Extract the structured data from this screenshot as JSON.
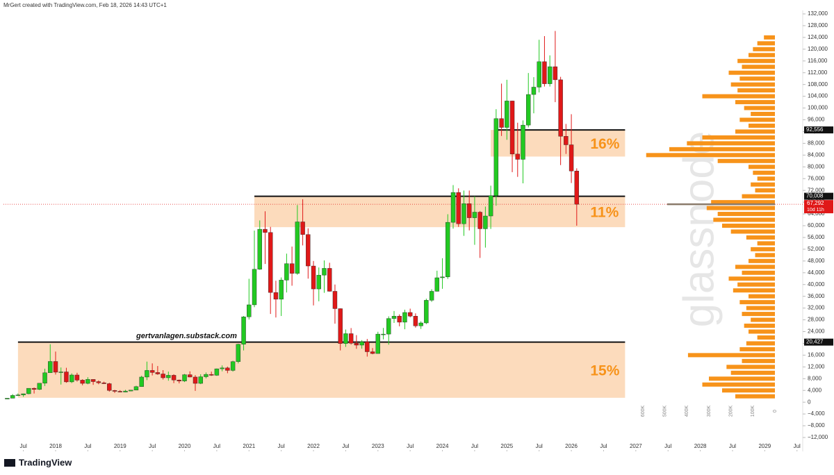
{
  "chart_data": {
    "type": "candlestick",
    "header": "MrGert created with TradingView.com, Feb 18, 2026 14:43 UTC+1",
    "footer": "TradingView",
    "annotation": "gertvanlagen.substack.com",
    "watermark": "glassnode",
    "x": [
      "2017-04",
      "2017-05",
      "2017-06",
      "2017-07",
      "2017-08",
      "2017-09",
      "2017-10",
      "2017-11",
      "2017-12",
      "2018-01",
      "2018-02",
      "2018-03",
      "2018-04",
      "2018-05",
      "2018-06",
      "2018-07",
      "2018-08",
      "2018-09",
      "2018-10",
      "2018-11",
      "2018-12",
      "2019-01",
      "2019-02",
      "2019-03",
      "2019-04",
      "2019-05",
      "2019-06",
      "2019-07",
      "2019-08",
      "2019-09",
      "2019-10",
      "2019-11",
      "2019-12",
      "2020-01",
      "2020-02",
      "2020-03",
      "2020-04",
      "2020-05",
      "2020-06",
      "2020-07",
      "2020-08",
      "2020-09",
      "2020-10",
      "2020-11",
      "2020-12",
      "2021-01",
      "2021-02",
      "2021-03",
      "2021-04",
      "2021-05",
      "2021-06",
      "2021-07",
      "2021-08",
      "2021-09",
      "2021-10",
      "2021-11",
      "2021-12",
      "2022-01",
      "2022-02",
      "2022-03",
      "2022-04",
      "2022-05",
      "2022-06",
      "2022-07",
      "2022-08",
      "2022-09",
      "2022-10",
      "2022-11",
      "2022-12",
      "2023-01",
      "2023-02",
      "2023-03",
      "2023-04",
      "2023-05",
      "2023-06",
      "2023-07",
      "2023-08",
      "2023-09",
      "2023-10",
      "2023-11",
      "2023-12",
      "2024-01",
      "2024-02",
      "2024-03",
      "2024-04",
      "2024-05",
      "2024-06",
      "2024-07",
      "2024-08",
      "2024-09",
      "2024-10",
      "2024-11",
      "2024-12",
      "2025-01",
      "2025-02",
      "2025-03",
      "2025-04",
      "2025-05",
      "2025-06",
      "2025-07",
      "2025-08",
      "2025-09",
      "2025-10",
      "2025-11",
      "2025-12",
      "2026-01",
      "2026-02"
    ],
    "ohlc": [
      [
        1080,
        1350,
        1060,
        1350
      ],
      [
        1350,
        2760,
        1350,
        2300
      ],
      [
        2300,
        2980,
        2100,
        2480
      ],
      [
        2480,
        2920,
        1830,
        2870
      ],
      [
        2870,
        4750,
        2700,
        4730
      ],
      [
        4730,
        5000,
        2950,
        4340
      ],
      [
        4340,
        6450,
        4100,
        6450
      ],
      [
        6450,
        11400,
        5500,
        10000
      ],
      [
        10000,
        19700,
        10000,
        13850
      ],
      [
        13850,
        17200,
        9400,
        10200
      ],
      [
        10200,
        11800,
        6000,
        10300
      ],
      [
        10300,
        11700,
        6600,
        6900
      ],
      [
        6900,
        9800,
        6500,
        9250
      ],
      [
        9250,
        10000,
        7000,
        7500
      ],
      [
        7500,
        7800,
        5750,
        6400
      ],
      [
        6400,
        8500,
        6100,
        7750
      ],
      [
        7750,
        7800,
        5900,
        7000
      ],
      [
        7000,
        7400,
        6100,
        6600
      ],
      [
        6600,
        7000,
        6200,
        6300
      ],
      [
        6300,
        6600,
        3600,
        4000
      ],
      [
        4000,
        4200,
        3150,
        3700
      ],
      [
        3700,
        4100,
        3350,
        3450
      ],
      [
        3450,
        4200,
        3400,
        3800
      ],
      [
        3800,
        4100,
        3700,
        4100
      ],
      [
        4100,
        5600,
        4100,
        5300
      ],
      [
        5300,
        9000,
        5300,
        8550
      ],
      [
        8550,
        13800,
        7500,
        10800
      ],
      [
        10800,
        13200,
        9100,
        10100
      ],
      [
        10100,
        12300,
        9300,
        9600
      ],
      [
        9600,
        10900,
        7700,
        8300
      ],
      [
        8300,
        10400,
        7300,
        9150
      ],
      [
        9150,
        9500,
        6500,
        7550
      ],
      [
        7550,
        7700,
        6400,
        7200
      ],
      [
        7200,
        9600,
        6850,
        9350
      ],
      [
        9350,
        10500,
        8450,
        8550
      ],
      [
        8550,
        9200,
        3850,
        6400
      ],
      [
        6400,
        9500,
        6150,
        8650
      ],
      [
        8650,
        10100,
        8100,
        9450
      ],
      [
        9450,
        10400,
        8950,
        9150
      ],
      [
        9150,
        11450,
        8950,
        11350
      ],
      [
        11350,
        12500,
        10500,
        11650
      ],
      [
        11650,
        12100,
        9850,
        10800
      ],
      [
        10800,
        14100,
        10400,
        13800
      ],
      [
        13800,
        19900,
        13200,
        19700
      ],
      [
        19700,
        29300,
        17600,
        29000
      ],
      [
        29000,
        41950,
        28100,
        33100
      ],
      [
        33100,
        58350,
        32300,
        45200
      ],
      [
        45200,
        61800,
        45000,
        58800
      ],
      [
        58800,
        64900,
        47000,
        57700
      ],
      [
        57700,
        59600,
        30000,
        37300
      ],
      [
        37300,
        41300,
        28800,
        35000
      ],
      [
        35000,
        42400,
        29300,
        41500
      ],
      [
        41500,
        50500,
        37300,
        47100
      ],
      [
        47100,
        52900,
        39600,
        43800
      ],
      [
        43800,
        67000,
        43300,
        61300
      ],
      [
        61300,
        69000,
        53300,
        57000
      ],
      [
        57000,
        59100,
        42000,
        46300
      ],
      [
        46300,
        48000,
        32900,
        38500
      ],
      [
        38500,
        45800,
        34300,
        43200
      ],
      [
        43200,
        48200,
        37200,
        45500
      ],
      [
        45500,
        47400,
        37600,
        37700
      ],
      [
        37700,
        40000,
        26700,
        31800
      ],
      [
        31800,
        31900,
        17600,
        19950
      ],
      [
        19950,
        24700,
        18800,
        23300
      ],
      [
        23300,
        25200,
        19600,
        20050
      ],
      [
        20050,
        22800,
        18150,
        19400
      ],
      [
        19400,
        21100,
        18200,
        20500
      ],
      [
        20500,
        21500,
        15500,
        17150
      ],
      [
        17150,
        18400,
        16300,
        16550
      ],
      [
        16550,
        23950,
        16500,
        23150
      ],
      [
        23150,
        25250,
        21350,
        23150
      ],
      [
        23150,
        29200,
        19550,
        28450
      ],
      [
        28450,
        31000,
        26950,
        29250
      ],
      [
        29250,
        29850,
        25800,
        27200
      ],
      [
        27200,
        31450,
        24800,
        30500
      ],
      [
        30500,
        31800,
        28850,
        29250
      ],
      [
        29250,
        30200,
        25350,
        25950
      ],
      [
        25950,
        27500,
        24900,
        26950
      ],
      [
        26950,
        35200,
        26550,
        34650
      ],
      [
        34650,
        38400,
        34100,
        37700
      ],
      [
        37700,
        44700,
        37600,
        42300
      ],
      [
        42300,
        48950,
        38550,
        42600
      ],
      [
        42600,
        63900,
        41900,
        61150
      ],
      [
        61150,
        73800,
        59000,
        71300
      ],
      [
        71300,
        72700,
        59600,
        60650
      ],
      [
        60650,
        71950,
        56550,
        67500
      ],
      [
        67500,
        71950,
        58400,
        62700
      ],
      [
        62700,
        70000,
        53500,
        64600
      ],
      [
        64600,
        65000,
        49050,
        58950
      ],
      [
        58950,
        66500,
        52550,
        63300
      ],
      [
        63300,
        73600,
        58900,
        70200
      ],
      [
        70200,
        99600,
        66800,
        96400
      ],
      [
        96400,
        108300,
        90500,
        93400
      ],
      [
        93400,
        109600,
        89200,
        102400
      ],
      [
        102400,
        102500,
        78200,
        84350
      ],
      [
        84350,
        95000,
        76600,
        82550
      ],
      [
        82550,
        95800,
        74400,
        94200
      ],
      [
        94200,
        111900,
        93400,
        104600
      ],
      [
        104600,
        110500,
        98200,
        107100
      ],
      [
        107100,
        123200,
        105300,
        115750
      ],
      [
        115750,
        124450,
        107300,
        108250
      ],
      [
        108250,
        117900,
        107300,
        114050
      ],
      [
        114050,
        126200,
        102000,
        109600
      ],
      [
        109600,
        110600,
        80600,
        90400
      ],
      [
        90400,
        94600,
        84400,
        87500
      ],
      [
        87500,
        97900,
        74500,
        78600
      ],
      [
        78600,
        79500,
        60000,
        67292
      ]
    ],
    "up_color": "#22c922",
    "down_color": "#e01818",
    "ylim": [
      -12000,
      132000
    ],
    "yticks": [
      {
        "value": -12000,
        "label": "−12,000"
      },
      {
        "value": -8000,
        "label": "−8,000"
      },
      {
        "value": -4000,
        "label": "−4,000"
      },
      0,
      {
        "value": 4000,
        "label": "4,000"
      },
      {
        "value": 8000,
        "label": "8,000"
      },
      {
        "value": 12000,
        "label": "12,000"
      },
      {
        "value": 16000,
        "label": "16,000"
      },
      {
        "value": 20000,
        "label": "20,000"
      },
      {
        "value": 24000,
        "label": "24,000"
      },
      {
        "value": 28000,
        "label": "28,000"
      },
      {
        "value": 32000,
        "label": "32,000"
      },
      {
        "value": 36000,
        "label": "36,000"
      },
      {
        "value": 40000,
        "label": "40,000"
      },
      {
        "value": 44000,
        "label": "44,000"
      },
      {
        "value": 48000,
        "label": "48,000"
      },
      {
        "value": 52000,
        "label": "52,000"
      },
      {
        "value": 56000,
        "label": "56,000"
      },
      {
        "value": 60000,
        "label": "60,000"
      },
      {
        "value": 64000,
        "label": "64,000"
      },
      {
        "value": 68000,
        "label": "68,000"
      },
      {
        "value": 72000,
        "label": "72,000"
      },
      {
        "value": 76000,
        "label": "76,000"
      },
      {
        "value": 80000,
        "label": "80,000"
      },
      {
        "value": 84000,
        "label": "84,000"
      },
      {
        "value": 88000,
        "label": "88,000"
      },
      {
        "value": 92000,
        "label": "92,000"
      },
      {
        "value": 96000,
        "label": "96,000"
      },
      {
        "value": 100000,
        "label": "100,000"
      },
      {
        "value": 104000,
        "label": "104,000"
      },
      {
        "value": 108000,
        "label": "108,000"
      },
      {
        "value": 112000,
        "label": "112,000"
      },
      {
        "value": 116000,
        "label": "116,000"
      },
      {
        "value": 120000,
        "label": "120,000"
      },
      {
        "value": 124000,
        "label": "124,000"
      },
      {
        "value": 128000,
        "label": "128,000"
      },
      {
        "value": 132000,
        "label": "132,000"
      }
    ],
    "xticks": [
      {
        "value": "2017-07",
        "label": "Jul"
      },
      {
        "value": "2018-01",
        "label": "2018"
      },
      {
        "value": "2018-07",
        "label": "Jul"
      },
      {
        "value": "2019-01",
        "label": "2019"
      },
      {
        "value": "2019-07",
        "label": "Jul"
      },
      {
        "value": "2020-01",
        "label": "2020"
      },
      {
        "value": "2020-07",
        "label": "Jul"
      },
      {
        "value": "2021-01",
        "label": "2021"
      },
      {
        "value": "2021-07",
        "label": "Jul"
      },
      {
        "value": "2022-01",
        "label": "2022"
      },
      {
        "value": "2022-07",
        "label": "Jul"
      },
      {
        "value": "2023-01",
        "label": "2023"
      },
      {
        "value": "2023-07",
        "label": "Jul"
      },
      {
        "value": "2024-01",
        "label": "2024"
      },
      {
        "value": "2024-07",
        "label": "Jul"
      },
      {
        "value": "2025-01",
        "label": "2025"
      },
      {
        "value": "2025-07",
        "label": "Jul"
      },
      {
        "value": "2026-01",
        "label": "2026"
      },
      {
        "value": "2026-07",
        "label": "Jul"
      },
      {
        "value": "2027-01",
        "label": "2027"
      },
      {
        "value": "2027-07",
        "label": "Jul"
      },
      {
        "value": "2028-01",
        "label": "2028"
      },
      {
        "value": "2028-07",
        "label": "Jul"
      },
      {
        "value": "2029-01",
        "label": "2029"
      },
      {
        "value": "2029-07",
        "label": "Jul"
      }
    ],
    "zones": [
      {
        "label": "16%",
        "low": 83500,
        "high": 92556,
        "start": "2024-10",
        "end": "2026-11"
      },
      {
        "label": "11%",
        "low": 59500,
        "high": 70008,
        "start": "2021-02",
        "end": "2026-11"
      },
      {
        "label": "15%",
        "low": 1500,
        "high": 20427,
        "start": "2017-06",
        "end": "2026-11"
      }
    ],
    "zone_color": "#fbcfa6",
    "zone_text_color": "#f7931a",
    "levels": [
      {
        "price": {
          "value": 92556,
          "label": "92,556"
        },
        "start": "2024-11",
        "end": "2026-11"
      },
      {
        "price": {
          "value": 70008,
          "label": "70,008"
        },
        "start": "2021-02",
        "end": "2026-11"
      },
      {
        "price": {
          "value": 20427,
          "label": "20,427"
        },
        "start": "2017-06",
        "end": "2026-11"
      }
    ],
    "current": {
      "price": {
        "value": 67292,
        "label": "67,292"
      },
      "countdown": "10d 11h"
    },
    "profile": {
      "color": "#f7931a",
      "levels": [
        2000,
        4000,
        6000,
        8000,
        10000,
        12000,
        14000,
        16000,
        18000,
        20000,
        22000,
        24000,
        26000,
        28000,
        30000,
        32000,
        34000,
        36000,
        38000,
        40000,
        42000,
        44000,
        46000,
        48000,
        50000,
        52000,
        54000,
        56000,
        58000,
        60000,
        62000,
        64000,
        66000,
        68000,
        70000,
        72000,
        74000,
        76000,
        78000,
        80000,
        82000,
        84000,
        86000,
        88000,
        90000,
        92000,
        94000,
        96000,
        98000,
        100000,
        102000,
        104000,
        106000,
        108000,
        110000,
        112000,
        114000,
        116000,
        118000,
        120000,
        122000,
        124000
      ],
      "volumes": [
        180000,
        240000,
        330000,
        300000,
        200000,
        220000,
        150000,
        395000,
        160000,
        130000,
        80000,
        120000,
        140000,
        110000,
        150000,
        130000,
        160000,
        120000,
        190000,
        170000,
        210000,
        150000,
        180000,
        120000,
        90000,
        110000,
        80000,
        130000,
        200000,
        240000,
        280000,
        260000,
        310000,
        290000,
        150000,
        90000,
        110000,
        80000,
        100000,
        120000,
        260000,
        585000,
        480000,
        400000,
        330000,
        180000,
        120000,
        160000,
        110000,
        140000,
        180000,
        330000,
        170000,
        200000,
        160000,
        210000,
        150000,
        170000,
        120000,
        100000,
        80000,
        50000
      ],
      "xlim": [
        0,
        600000
      ],
      "xticks": [
        {
          "value": 600000,
          "label": "600K"
        },
        {
          "value": 500000,
          "label": "500K"
        },
        {
          "value": 400000,
          "label": "400K"
        },
        {
          "value": 300000,
          "label": "300K"
        },
        {
          "value": 200000,
          "label": "200K"
        },
        {
          "value": 100000,
          "label": "100K"
        },
        0
      ]
    }
  }
}
